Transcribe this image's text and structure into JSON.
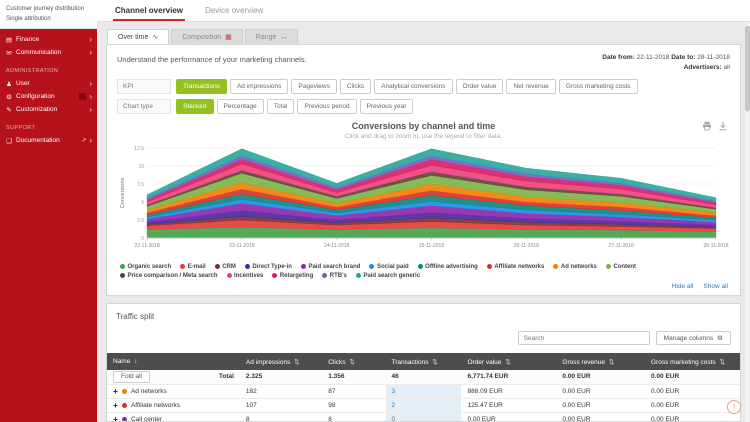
{
  "icons": {
    "finance": "▤",
    "communication": "✉",
    "user": "♟",
    "configuration": "⚙",
    "customization": "✎",
    "documentation": "❏",
    "external": "↗",
    "chevron": "›",
    "expand": "+",
    "gear": "⚙",
    "sort": "⇅",
    "sort_active": "↕",
    "scroll_top": "↑",
    "line-chart": "∿",
    "bar-chart": "▦",
    "range": "↔"
  },
  "colors": {
    "sidebar_red": "#b5121b",
    "accent_red": "#c62828",
    "active_green": "#94c122",
    "link_blue": "#2779bd",
    "table_header_gray": "#4d4d4d",
    "transactions_highlight": "#e3eef7"
  },
  "sidebar": {
    "secondary_items": [
      "Customer journey distribution",
      "Single attribution"
    ],
    "sections": [
      {
        "title": "",
        "items": [
          {
            "label": "Finance",
            "icon": "finance"
          },
          {
            "label": "Communication",
            "icon": "communication"
          }
        ]
      },
      {
        "title": "ADMINISTRATION",
        "items": [
          {
            "label": "User",
            "icon": "user"
          },
          {
            "label": "Configuration",
            "icon": "configuration",
            "badge": true
          },
          {
            "label": "Customization",
            "icon": "customization"
          }
        ]
      },
      {
        "title": "SUPPORT",
        "items": [
          {
            "label": "Documentation",
            "icon": "documentation",
            "external": true
          }
        ]
      }
    ]
  },
  "header": {
    "tabs": [
      {
        "label": "Channel overview",
        "active": true
      },
      {
        "label": "Device overview",
        "active": false
      }
    ]
  },
  "subtabs": [
    {
      "label": "Over time",
      "icon": "line-chart",
      "active": true
    },
    {
      "label": "Composition",
      "icon": "bar-chart",
      "active": false
    },
    {
      "label": "Range",
      "icon": "range",
      "active": false
    }
  ],
  "overview": {
    "description": "Understand the performance of your marketing channels.",
    "date_from_label": "Date from:",
    "date_from": "22-11-2018",
    "date_to_label": "Date to:",
    "date_to": "28-11-2018",
    "advertisers_label": "Advertisers:",
    "advertisers_value": "all",
    "kpi_label": "KPI",
    "kpi_active": "Transactions",
    "kpi_options": [
      "Transactions",
      "Ad impressions",
      "Pageviews",
      "Clicks",
      "Analytical conversions",
      "Order value",
      "Net revenue",
      "Gross marketing costs"
    ],
    "chart_type_label": "Chart type",
    "chart_type_active": "Stacked",
    "chart_type_options": [
      "Stacked",
      "Percentage",
      "Total",
      "Previous period",
      "Previous year"
    ]
  },
  "chart_data": {
    "type": "area",
    "stacked": true,
    "title": "Conversions by channel and time",
    "subtitle": "Click and drag to zoom in, use the legend to filter data.",
    "ylabel": "Conversions",
    "xlabel": "",
    "ylim": [
      0,
      12.5
    ],
    "yticks": [
      0,
      2.5,
      5,
      7.5,
      10,
      12.5
    ],
    "grid": true,
    "legend_position": "bottom",
    "x": [
      "22-11-2018",
      "23-11-2018",
      "24-11-2018",
      "25-11-2018",
      "26-11-2018",
      "27-11-2018",
      "28-11-2018"
    ],
    "series": [
      {
        "name": "Organic search",
        "color": "#43a047",
        "values": [
          1.2,
          1.5,
          1.2,
          1.4,
          1.2,
          1.1,
          0.9
        ]
      },
      {
        "name": "E-mail",
        "color": "#e53935",
        "values": [
          0.5,
          1.0,
          0.6,
          0.9,
          0.6,
          0.5,
          0.4
        ]
      },
      {
        "name": "CRM",
        "color": "#7b2e2e",
        "values": [
          0.2,
          0.5,
          0.3,
          0.5,
          0.4,
          0.3,
          0.2
        ]
      },
      {
        "name": "Direct Type-in",
        "color": "#4527a0",
        "values": [
          0.3,
          0.8,
          0.4,
          0.7,
          0.5,
          0.4,
          0.3
        ]
      },
      {
        "name": "Paid search brand",
        "color": "#8e24aa",
        "values": [
          0.4,
          1.0,
          0.6,
          1.0,
          0.7,
          0.6,
          0.4
        ]
      },
      {
        "name": "Social paid",
        "color": "#1e88e5",
        "values": [
          0.3,
          0.6,
          0.4,
          0.6,
          0.5,
          0.4,
          0.3
        ]
      },
      {
        "name": "Offline advertising",
        "color": "#00897b",
        "values": [
          0.3,
          0.7,
          0.4,
          0.8,
          0.6,
          0.5,
          0.3
        ]
      },
      {
        "name": "Affiliate networks",
        "color": "#d32f2f",
        "values": [
          0.3,
          0.7,
          0.4,
          0.7,
          0.5,
          0.5,
          0.3
        ]
      },
      {
        "name": "Ad networks",
        "color": "#f57c00",
        "values": [
          0.4,
          0.9,
          0.5,
          0.9,
          0.7,
          0.6,
          0.4
        ]
      },
      {
        "name": "Content",
        "color": "#7cb342",
        "values": [
          0.5,
          1.3,
          0.7,
          1.2,
          1.0,
          0.9,
          0.5
        ]
      },
      {
        "name": "Price comparison / Meta search",
        "color": "#5d4037",
        "values": [
          0.2,
          0.4,
          0.3,
          0.5,
          0.4,
          0.3,
          0.2
        ]
      },
      {
        "name": "Incentives",
        "color": "#ec407a",
        "values": [
          0.4,
          0.9,
          0.5,
          0.9,
          0.8,
          0.7,
          0.4
        ]
      },
      {
        "name": "Retargeting",
        "color": "#d81b60",
        "values": [
          0.3,
          0.6,
          0.4,
          0.8,
          0.6,
          0.5,
          0.3
        ]
      },
      {
        "name": "RTB's",
        "color": "#7e57c2",
        "values": [
          0.2,
          0.5,
          0.3,
          0.5,
          0.4,
          0.3,
          0.2
        ]
      },
      {
        "name": "Paid search generic",
        "color": "#26a69a",
        "values": [
          0.5,
          1.0,
          0.6,
          1.0,
          0.8,
          0.7,
          0.5
        ]
      }
    ],
    "actions": {
      "hide_all": "Hide all",
      "show_all": "Show all"
    }
  },
  "traffic": {
    "title": "Traffic split",
    "search_placeholder": "Search",
    "manage_columns_label": "Manage columns",
    "fold_all_label": "Fold all",
    "total_label": "Total",
    "columns": [
      "Name",
      "Ad impressions",
      "Clicks",
      "Transactions",
      "Order value",
      "Gross revenue",
      "Gross marketing costs"
    ],
    "totals": [
      "2.325",
      "1.356",
      "46",
      "6,771.74 EUR",
      "0.00 EUR",
      "0.00 EUR"
    ],
    "rows": [
      {
        "name": "Ad networks",
        "color": "#f57c00",
        "values": [
          "182",
          "87",
          "3",
          "888.09 EUR",
          "0.00 EUR",
          "0.00 EUR"
        ]
      },
      {
        "name": "Affiliate networks",
        "color": "#d32f2f",
        "values": [
          "107",
          "98",
          "2",
          "125.47 EUR",
          "0.00 EUR",
          "0.00 EUR"
        ]
      },
      {
        "name": "Call center",
        "color": "#8e24aa",
        "values": [
          "8",
          "8",
          "0",
          "0.00 EUR",
          "0.00 EUR",
          "0.00 EUR"
        ]
      }
    ]
  }
}
